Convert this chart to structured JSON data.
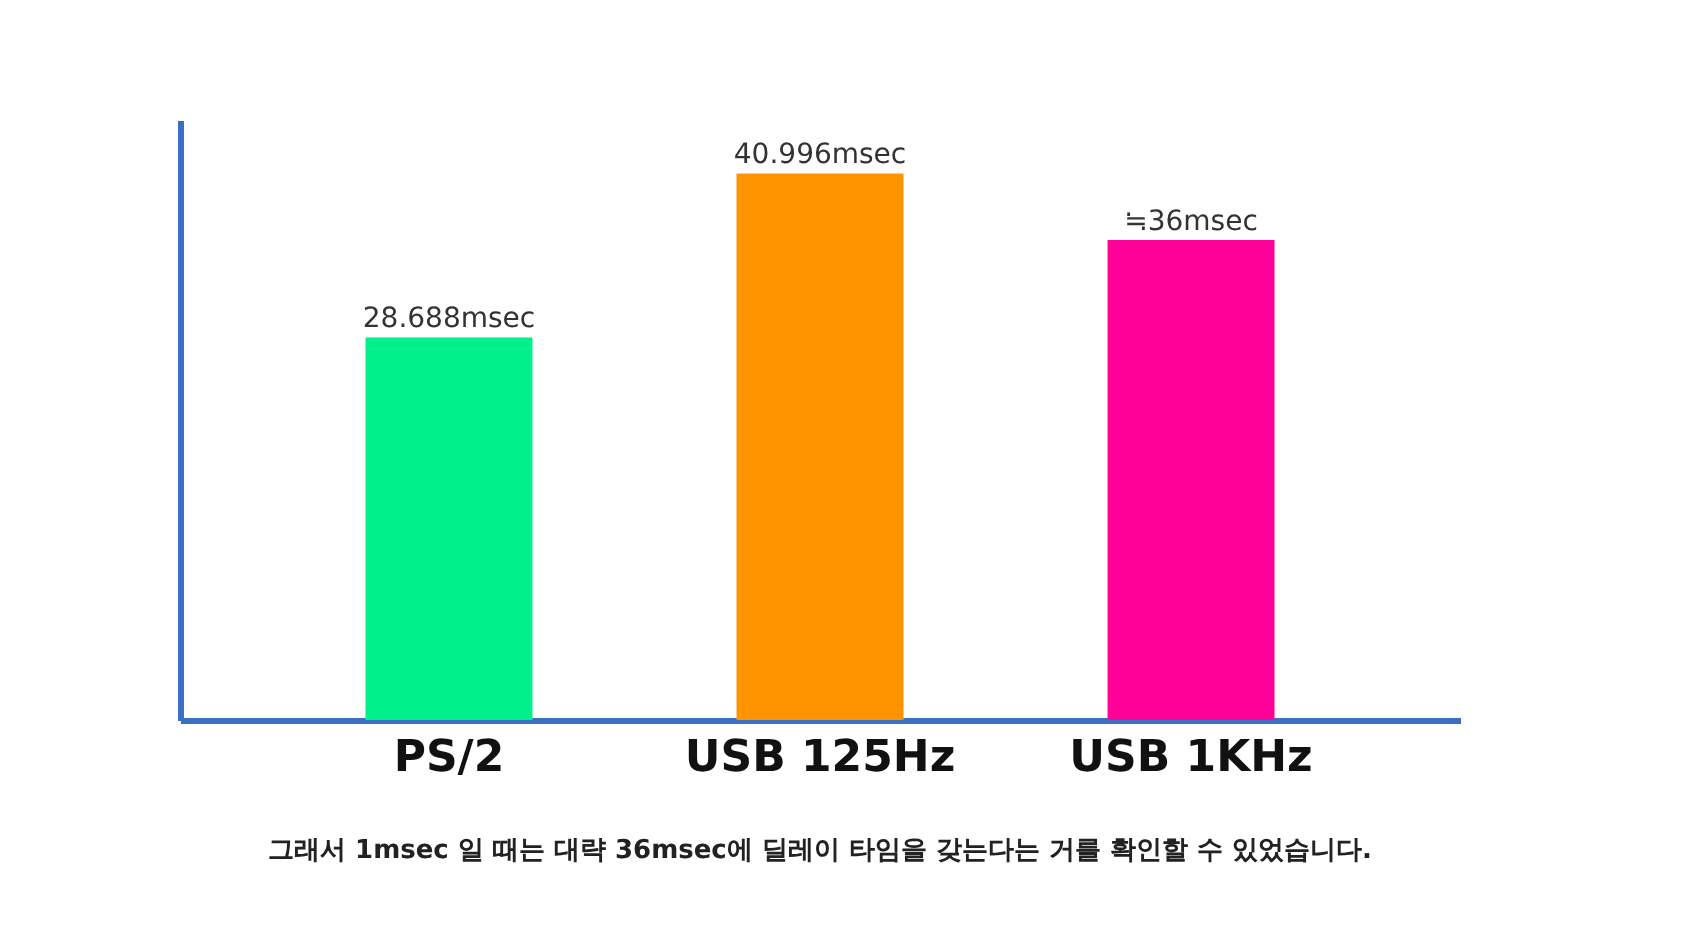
{
  "chart_data": {
    "type": "bar",
    "categories": [
      "PS/2",
      "USB 125Hz",
      "USB 1KHz"
    ],
    "values": [
      28.688,
      40.996,
      36
    ],
    "colors": [
      "#00f08c",
      "#ff9400",
      "#ff0098"
    ],
    "value_labels": [
      "28.688msec",
      "40.996msec",
      "≒36msec"
    ],
    "ylim": [
      0,
      45
    ],
    "tick_labels": "x",
    "annotations": [
      "그래서 1msec 일 때는 대략 36msec에 딜레이 타임을 갖는다는 거를 확인할 수 있었습니다."
    ]
  }
}
